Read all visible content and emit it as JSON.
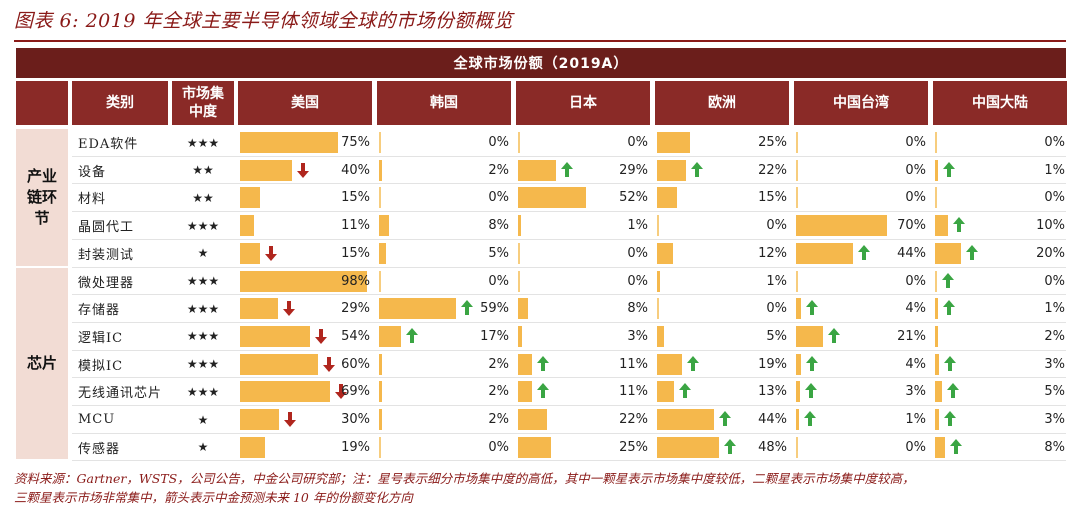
{
  "title": "图表 6: 2019 年全球主要半导体领域全球的市场份额概览",
  "band_label": "全球市场份额（2019A）",
  "headers": {
    "category": "类别",
    "concentration": "市场集\n中度",
    "regions": [
      "美国",
      "韩国",
      "日本",
      "欧洲",
      "中国台湾",
      "中国大陆"
    ]
  },
  "groups": [
    {
      "label": "产业\n链环\n节",
      "start": 0,
      "count": 5
    },
    {
      "label": "芯片",
      "start": 5,
      "count": 7
    }
  ],
  "colors": {
    "bar": "#f5b84c",
    "header": "#8a2a27",
    "up_arrow": "#3aa543",
    "down_arrow": "#b0261e"
  },
  "rows": [
    {
      "category": "EDA软件",
      "stars": "★★★",
      "cells": [
        {
          "pct": 75,
          "label": "75%",
          "arrow": ""
        },
        {
          "pct": 0,
          "label": "0%",
          "arrow": ""
        },
        {
          "pct": 0,
          "label": "0%",
          "arrow": ""
        },
        {
          "pct": 25,
          "label": "25%",
          "arrow": ""
        },
        {
          "pct": 0,
          "label": "0%",
          "arrow": ""
        },
        {
          "pct": 0,
          "label": "0%",
          "arrow": ""
        }
      ]
    },
    {
      "category": "设备",
      "stars": "★★",
      "cells": [
        {
          "pct": 40,
          "label": "40%",
          "arrow": "down"
        },
        {
          "pct": 2,
          "label": "2%",
          "arrow": ""
        },
        {
          "pct": 29,
          "label": "29%",
          "arrow": "up"
        },
        {
          "pct": 22,
          "label": "22%",
          "arrow": "up"
        },
        {
          "pct": 0,
          "label": "0%",
          "arrow": ""
        },
        {
          "pct": 1,
          "label": "1%",
          "arrow": "up"
        }
      ]
    },
    {
      "category": "材料",
      "stars": "★★",
      "cells": [
        {
          "pct": 15,
          "label": "15%",
          "arrow": ""
        },
        {
          "pct": 0,
          "label": "0%",
          "arrow": ""
        },
        {
          "pct": 52,
          "label": "52%",
          "arrow": ""
        },
        {
          "pct": 15,
          "label": "15%",
          "arrow": ""
        },
        {
          "pct": 0,
          "label": "0%",
          "arrow": ""
        },
        {
          "pct": 0,
          "label": "0%",
          "arrow": ""
        }
      ]
    },
    {
      "category": "晶圆代工",
      "stars": "★★★",
      "cells": [
        {
          "pct": 11,
          "label": "11%",
          "arrow": ""
        },
        {
          "pct": 8,
          "label": "8%",
          "arrow": ""
        },
        {
          "pct": 1,
          "label": "1%",
          "arrow": ""
        },
        {
          "pct": 0,
          "label": "0%",
          "arrow": ""
        },
        {
          "pct": 70,
          "label": "70%",
          "arrow": ""
        },
        {
          "pct": 10,
          "label": "10%",
          "arrow": "up"
        }
      ]
    },
    {
      "category": "封装测试",
      "stars": "★",
      "cells": [
        {
          "pct": 15,
          "label": "15%",
          "arrow": "down"
        },
        {
          "pct": 5,
          "label": "5%",
          "arrow": ""
        },
        {
          "pct": 0,
          "label": "0%",
          "arrow": ""
        },
        {
          "pct": 12,
          "label": "12%",
          "arrow": ""
        },
        {
          "pct": 44,
          "label": "44%",
          "arrow": "up"
        },
        {
          "pct": 20,
          "label": "20%",
          "arrow": "up"
        }
      ]
    },
    {
      "category": "微处理器",
      "stars": "★★★",
      "cells": [
        {
          "pct": 98,
          "label": "98%",
          "arrow": ""
        },
        {
          "pct": 0,
          "label": "0%",
          "arrow": ""
        },
        {
          "pct": 0,
          "label": "0%",
          "arrow": ""
        },
        {
          "pct": 1,
          "label": "1%",
          "arrow": ""
        },
        {
          "pct": 0,
          "label": "0%",
          "arrow": ""
        },
        {
          "pct": 0,
          "label": "0%",
          "arrow": "up"
        }
      ]
    },
    {
      "category": "存储器",
      "stars": "★★★",
      "cells": [
        {
          "pct": 29,
          "label": "29%",
          "arrow": "down"
        },
        {
          "pct": 59,
          "label": "59%",
          "arrow": "up"
        },
        {
          "pct": 8,
          "label": "8%",
          "arrow": ""
        },
        {
          "pct": 0,
          "label": "0%",
          "arrow": ""
        },
        {
          "pct": 4,
          "label": "4%",
          "arrow": "up"
        },
        {
          "pct": 1,
          "label": "1%",
          "arrow": "up"
        }
      ]
    },
    {
      "category": "逻辑IC",
      "stars": "★★★",
      "cells": [
        {
          "pct": 54,
          "label": "54%",
          "arrow": "down"
        },
        {
          "pct": 17,
          "label": "17%",
          "arrow": "up"
        },
        {
          "pct": 3,
          "label": "3%",
          "arrow": ""
        },
        {
          "pct": 5,
          "label": "5%",
          "arrow": ""
        },
        {
          "pct": 21,
          "label": "21%",
          "arrow": "up"
        },
        {
          "pct": 2,
          "label": "2%",
          "arrow": ""
        }
      ]
    },
    {
      "category": "模拟IC",
      "stars": "★★★",
      "cells": [
        {
          "pct": 60,
          "label": "60%",
          "arrow": "down"
        },
        {
          "pct": 2,
          "label": "2%",
          "arrow": ""
        },
        {
          "pct": 11,
          "label": "11%",
          "arrow": "up"
        },
        {
          "pct": 19,
          "label": "19%",
          "arrow": "up"
        },
        {
          "pct": 4,
          "label": "4%",
          "arrow": "up"
        },
        {
          "pct": 3,
          "label": "3%",
          "arrow": "up"
        }
      ]
    },
    {
      "category": "无线通讯芯片",
      "stars": "★★★",
      "cells": [
        {
          "pct": 69,
          "label": "69%",
          "arrow": "down"
        },
        {
          "pct": 2,
          "label": "2%",
          "arrow": ""
        },
        {
          "pct": 11,
          "label": "11%",
          "arrow": "up"
        },
        {
          "pct": 13,
          "label": "13%",
          "arrow": "up"
        },
        {
          "pct": 3,
          "label": "3%",
          "arrow": "up"
        },
        {
          "pct": 5,
          "label": "5%",
          "arrow": "up"
        }
      ]
    },
    {
      "category": "MCU",
      "stars": "★",
      "cells": [
        {
          "pct": 30,
          "label": "30%",
          "arrow": "down"
        },
        {
          "pct": 2,
          "label": "2%",
          "arrow": ""
        },
        {
          "pct": 22,
          "label": "22%",
          "arrow": ""
        },
        {
          "pct": 44,
          "label": "44%",
          "arrow": "up"
        },
        {
          "pct": 1,
          "label": "1%",
          "arrow": "up"
        },
        {
          "pct": 3,
          "label": "3%",
          "arrow": "up"
        }
      ]
    },
    {
      "category": "传感器",
      "stars": "★",
      "cells": [
        {
          "pct": 19,
          "label": "19%",
          "arrow": ""
        },
        {
          "pct": 0,
          "label": "0%",
          "arrow": ""
        },
        {
          "pct": 25,
          "label": "25%",
          "arrow": ""
        },
        {
          "pct": 48,
          "label": "48%",
          "arrow": "up"
        },
        {
          "pct": 0,
          "label": "0%",
          "arrow": ""
        },
        {
          "pct": 8,
          "label": "8%",
          "arrow": "up"
        }
      ]
    }
  ],
  "footer": {
    "line1": "资料来源：Gartner，WSTS，公司公告，中金公司研究部；注：星号表示细分市场集中度的高低，其中一颗星表示市场集中度较低，二颗星表示市场集中度较高，",
    "line2": "三颗星表示市场非常集中，箭头表示中金预测未来 10 年的份额变化方向"
  }
}
